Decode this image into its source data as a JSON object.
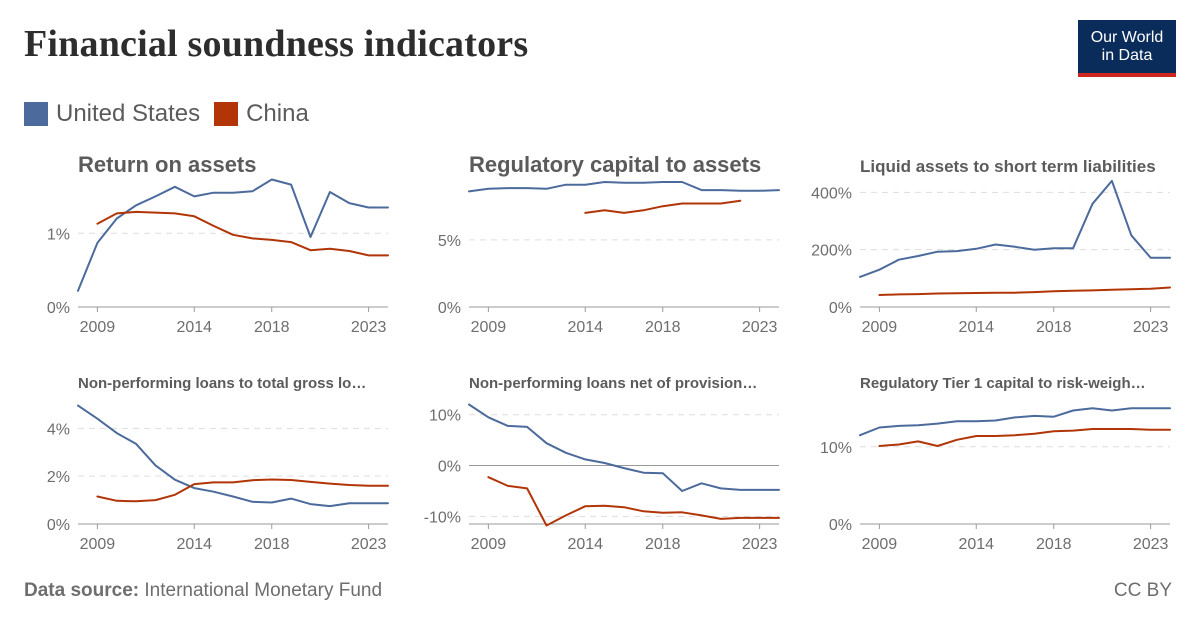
{
  "title": "Financial soundness indicators",
  "logo": {
    "line1": "Our World",
    "line2": "in Data"
  },
  "legend": [
    {
      "name": "United States",
      "color": "#4c6a9c"
    },
    {
      "name": "China",
      "color": "#b13507"
    }
  ],
  "footer": {
    "source_label": "Data source:",
    "source_value": "International Monetary Fund",
    "license": "CC BY"
  },
  "chart_data": [
    {
      "type": "line",
      "title": "Return on assets",
      "x_ticks": [
        "2009",
        "2014",
        "2018",
        "2023"
      ],
      "x_range": [
        2008,
        2024
      ],
      "ylim": [
        0,
        1.75
      ],
      "y_ticks": [
        {
          "value": 0,
          "label": "0%"
        },
        {
          "value": 1,
          "label": "1%"
        }
      ],
      "series": [
        {
          "name": "United States",
          "x": [
            2008,
            2009,
            2010,
            2011,
            2012,
            2013,
            2014,
            2015,
            2016,
            2017,
            2018,
            2019,
            2020,
            2021,
            2022,
            2023,
            2024
          ],
          "values": [
            0.22,
            0.87,
            1.2,
            1.38,
            1.5,
            1.63,
            1.5,
            1.55,
            1.55,
            1.57,
            1.73,
            1.66,
            0.95,
            1.56,
            1.41,
            1.35,
            1.35
          ]
        },
        {
          "name": "China",
          "x": [
            2009,
            2010,
            2011,
            2012,
            2013,
            2014,
            2015,
            2016,
            2017,
            2018,
            2019,
            2020,
            2021,
            2022,
            2023,
            2024
          ],
          "values": [
            1.13,
            1.27,
            1.29,
            1.28,
            1.27,
            1.23,
            1.1,
            0.98,
            0.93,
            0.91,
            0.88,
            0.77,
            0.79,
            0.76,
            0.7,
            0.7
          ]
        }
      ]
    },
    {
      "type": "line",
      "title": "Regulatory capital to assets",
      "x_ticks": [
        "2009",
        "2014",
        "2018",
        "2023"
      ],
      "x_range": [
        2008,
        2024
      ],
      "ylim": [
        0,
        9.6
      ],
      "y_ticks": [
        {
          "value": 0,
          "label": "0%"
        },
        {
          "value": 5,
          "label": "5%"
        }
      ],
      "series": [
        {
          "name": "United States",
          "x": [
            2008,
            2009,
            2010,
            2011,
            2012,
            2013,
            2014,
            2015,
            2016,
            2017,
            2018,
            2019,
            2020,
            2021,
            2022,
            2023,
            2024
          ],
          "values": [
            8.6,
            8.8,
            8.85,
            8.85,
            8.8,
            9.1,
            9.1,
            9.3,
            9.25,
            9.25,
            9.3,
            9.3,
            8.7,
            8.7,
            8.65,
            8.65,
            8.7
          ]
        },
        {
          "name": "China",
          "x": [
            2014,
            2015,
            2016,
            2017,
            2018,
            2019,
            2020,
            2021,
            2022
          ],
          "values": [
            7.0,
            7.2,
            7.0,
            7.2,
            7.5,
            7.7,
            7.7,
            7.7,
            7.9
          ]
        }
      ]
    },
    {
      "type": "line",
      "title": "Liquid assets to short term liabilities",
      "x_ticks": [
        "2009",
        "2014",
        "2018",
        "2023"
      ],
      "x_range": [
        2008,
        2024
      ],
      "ylim": [
        0,
        450
      ],
      "y_ticks": [
        {
          "value": 0,
          "label": "0%"
        },
        {
          "value": 200,
          "label": "200%"
        },
        {
          "value": 400,
          "label": "400%"
        }
      ],
      "series": [
        {
          "name": "United States",
          "x": [
            2008,
            2009,
            2010,
            2011,
            2012,
            2013,
            2014,
            2015,
            2016,
            2017,
            2018,
            2019,
            2020,
            2021,
            2022,
            2023,
            2024
          ],
          "values": [
            105,
            130,
            165,
            178,
            193,
            195,
            203,
            218,
            210,
            200,
            205,
            205,
            360,
            440,
            250,
            172,
            172
          ]
        },
        {
          "name": "China",
          "x": [
            2009,
            2010,
            2011,
            2012,
            2013,
            2014,
            2015,
            2016,
            2017,
            2018,
            2019,
            2020,
            2021,
            2022,
            2023,
            2024
          ],
          "values": [
            42,
            44,
            45,
            47,
            48,
            49,
            50,
            50,
            52,
            55,
            57,
            58,
            60,
            62,
            64,
            68
          ]
        }
      ]
    },
    {
      "type": "line",
      "title": "Non-performing loans to total gross lo…",
      "x_ticks": [
        "2009",
        "2014",
        "2018",
        "2023"
      ],
      "x_range": [
        2008,
        2024
      ],
      "ylim": [
        0,
        5.1
      ],
      "y_ticks": [
        {
          "value": 0,
          "label": "0%"
        },
        {
          "value": 2,
          "label": "2%"
        },
        {
          "value": 4,
          "label": "4%"
        }
      ],
      "series": [
        {
          "name": "United States",
          "x": [
            2008,
            2009,
            2010,
            2011,
            2012,
            2013,
            2014,
            2015,
            2016,
            2017,
            2018,
            2019,
            2020,
            2021,
            2022,
            2023,
            2024
          ],
          "values": [
            4.95,
            4.4,
            3.8,
            3.35,
            2.45,
            1.85,
            1.5,
            1.35,
            1.15,
            0.93,
            0.9,
            1.06,
            0.83,
            0.75,
            0.87,
            0.87,
            0.87
          ]
        },
        {
          "name": "China",
          "x": [
            2009,
            2010,
            2011,
            2012,
            2013,
            2014,
            2015,
            2016,
            2017,
            2018,
            2019,
            2020,
            2021,
            2022,
            2023,
            2024
          ],
          "values": [
            1.15,
            0.97,
            0.95,
            1.0,
            1.22,
            1.67,
            1.74,
            1.74,
            1.83,
            1.86,
            1.84,
            1.76,
            1.69,
            1.63,
            1.6,
            1.6
          ]
        }
      ]
    },
    {
      "type": "line",
      "title": "Non-performing loans net of provision…",
      "x_ticks": [
        "2009",
        "2014",
        "2018",
        "2023"
      ],
      "x_range": [
        2008,
        2024
      ],
      "ylim": [
        -11.5,
        12.5
      ],
      "y_ticks": [
        {
          "value": -10,
          "label": "-10%"
        },
        {
          "value": 0,
          "label": "0%"
        },
        {
          "value": 10,
          "label": "10%"
        }
      ],
      "series": [
        {
          "name": "United States",
          "x": [
            2008,
            2009,
            2010,
            2011,
            2012,
            2013,
            2014,
            2015,
            2016,
            2017,
            2018,
            2019,
            2020,
            2021,
            2022,
            2023,
            2024
          ],
          "values": [
            12,
            9.5,
            7.8,
            7.6,
            4.4,
            2.5,
            1.2,
            0.5,
            -0.5,
            -1.4,
            -1.5,
            -5.0,
            -3.5,
            -4.5,
            -4.8,
            -4.8,
            -4.8
          ]
        },
        {
          "name": "China",
          "x": [
            2009,
            2010,
            2011,
            2012,
            2013,
            2014,
            2015,
            2016,
            2017,
            2018,
            2019,
            2020,
            2021,
            2022,
            2023,
            2024
          ],
          "values": [
            -2.3,
            -4.0,
            -4.5,
            -11.8,
            -9.8,
            -8.0,
            -7.9,
            -8.2,
            -9.0,
            -9.3,
            -9.2,
            -9.8,
            -10.5,
            -10.3,
            -10.3,
            -10.3
          ]
        }
      ]
    },
    {
      "type": "line",
      "title": "Regulatory Tier 1 capital to risk-weigh…",
      "x_ticks": [
        "2009",
        "2014",
        "2018",
        "2023"
      ],
      "x_range": [
        2008,
        2024
      ],
      "ylim": [
        0,
        15.8
      ],
      "y_ticks": [
        {
          "value": 0,
          "label": "0%"
        },
        {
          "value": 10,
          "label": "10%"
        }
      ],
      "series": [
        {
          "name": "United States",
          "x": [
            2008,
            2009,
            2010,
            2011,
            2012,
            2013,
            2014,
            2015,
            2016,
            2017,
            2018,
            2019,
            2020,
            2021,
            2022,
            2023,
            2024
          ],
          "values": [
            11.5,
            12.5,
            12.7,
            12.8,
            13.0,
            13.3,
            13.3,
            13.4,
            13.8,
            14.0,
            13.9,
            14.7,
            15.0,
            14.7,
            15.0,
            15.0,
            15.0
          ]
        },
        {
          "name": "China",
          "x": [
            2009,
            2010,
            2011,
            2012,
            2013,
            2014,
            2015,
            2016,
            2017,
            2018,
            2019,
            2020,
            2021,
            2022,
            2023,
            2024
          ],
          "values": [
            10.1,
            10.3,
            10.7,
            10.1,
            10.9,
            11.4,
            11.4,
            11.5,
            11.7,
            12.0,
            12.1,
            12.3,
            12.3,
            12.3,
            12.2,
            12.2
          ]
        }
      ]
    }
  ]
}
